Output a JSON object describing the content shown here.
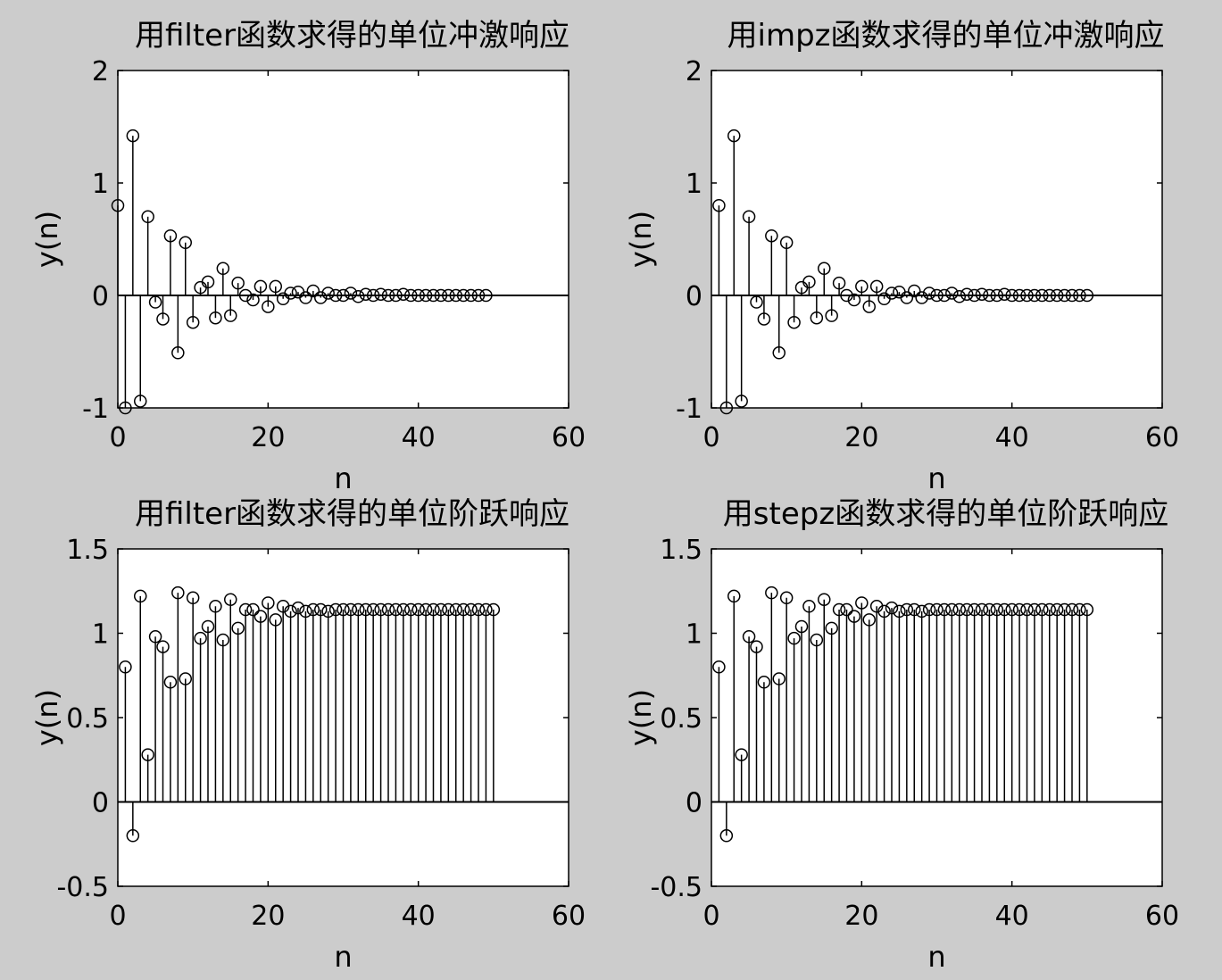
{
  "chart_data": [
    {
      "type": "stem",
      "title": "用filter函数求得的单位冲激响应",
      "xlabel": "n",
      "ylabel": "y(n)",
      "xlim": [
        0,
        60
      ],
      "ylim": [
        -1,
        2
      ],
      "xticks": [
        "0",
        "20",
        "40",
        "60"
      ],
      "yticks": [
        "-1",
        "0",
        "1",
        "2"
      ],
      "x": [
        0,
        1,
        2,
        3,
        4,
        5,
        6,
        7,
        8,
        9,
        10,
        11,
        12,
        13,
        14,
        15,
        16,
        17,
        18,
        19,
        20,
        21,
        22,
        23,
        24,
        25,
        26,
        27,
        28,
        29,
        30,
        31,
        32,
        33,
        34,
        35,
        36,
        37,
        38,
        39,
        40,
        41,
        42,
        43,
        44,
        45,
        46,
        47,
        48,
        49
      ],
      "values": [
        0.8,
        -1.0,
        1.42,
        -0.94,
        0.7,
        -0.06,
        -0.21,
        0.53,
        -0.51,
        0.47,
        -0.24,
        0.07,
        0.12,
        -0.2,
        0.24,
        -0.18,
        0.11,
        0.0,
        -0.04,
        0.08,
        -0.1,
        0.08,
        -0.03,
        0.02,
        0.03,
        -0.02,
        0.04,
        -0.02,
        0.02,
        0.0,
        0.0,
        0.02,
        -0.01,
        0.01,
        0.0,
        0.01,
        0.0,
        0.0,
        0.01,
        0.0,
        0.0,
        0.0,
        0.0,
        0.0,
        0.0,
        0.0,
        0.0,
        0.0,
        0.0,
        0.0
      ],
      "grid": false
    },
    {
      "type": "stem",
      "title": "用impz函数求得的单位冲激响应",
      "xlabel": "n",
      "ylabel": "y(n)",
      "xlim": [
        0,
        60
      ],
      "ylim": [
        -1,
        2
      ],
      "xticks": [
        "0",
        "20",
        "40",
        "60"
      ],
      "yticks": [
        "-1",
        "0",
        "1",
        "2"
      ],
      "x": [
        1,
        2,
        3,
        4,
        5,
        6,
        7,
        8,
        9,
        10,
        11,
        12,
        13,
        14,
        15,
        16,
        17,
        18,
        19,
        20,
        21,
        22,
        23,
        24,
        25,
        26,
        27,
        28,
        29,
        30,
        31,
        32,
        33,
        34,
        35,
        36,
        37,
        38,
        39,
        40,
        41,
        42,
        43,
        44,
        45,
        46,
        47,
        48,
        49,
        50
      ],
      "values": [
        0.8,
        -1.0,
        1.42,
        -0.94,
        0.7,
        -0.06,
        -0.21,
        0.53,
        -0.51,
        0.47,
        -0.24,
        0.07,
        0.12,
        -0.2,
        0.24,
        -0.18,
        0.11,
        0.0,
        -0.04,
        0.08,
        -0.1,
        0.08,
        -0.03,
        0.02,
        0.03,
        -0.02,
        0.04,
        -0.02,
        0.02,
        0.0,
        0.0,
        0.02,
        -0.01,
        0.01,
        0.0,
        0.01,
        0.0,
        0.0,
        0.01,
        0.0,
        0.0,
        0.0,
        0.0,
        0.0,
        0.0,
        0.0,
        0.0,
        0.0,
        0.0,
        0.0
      ],
      "grid": false
    },
    {
      "type": "stem",
      "title": "用filter函数求得的单位阶跃响应",
      "xlabel": "n",
      "ylabel": "y(n)",
      "xlim": [
        0,
        60
      ],
      "ylim": [
        -0.5,
        1.5
      ],
      "xticks": [
        "0",
        "20",
        "40",
        "60"
      ],
      "yticks": [
        "-0.5",
        "0",
        "0.5",
        "1",
        "1.5"
      ],
      "x": [
        1,
        2,
        3,
        4,
        5,
        6,
        7,
        8,
        9,
        10,
        11,
        12,
        13,
        14,
        15,
        16,
        17,
        18,
        19,
        20,
        21,
        22,
        23,
        24,
        25,
        26,
        27,
        28,
        29,
        30,
        31,
        32,
        33,
        34,
        35,
        36,
        37,
        38,
        39,
        40,
        41,
        42,
        43,
        44,
        45,
        46,
        47,
        48,
        49,
        50
      ],
      "values": [
        0.8,
        -0.2,
        1.22,
        0.28,
        0.98,
        0.92,
        0.71,
        1.24,
        0.73,
        1.21,
        0.97,
        1.04,
        1.16,
        0.96,
        1.2,
        1.03,
        1.14,
        1.14,
        1.1,
        1.18,
        1.08,
        1.16,
        1.13,
        1.15,
        1.13,
        1.14,
        1.14,
        1.13,
        1.14,
        1.14,
        1.14,
        1.14,
        1.14,
        1.14,
        1.14,
        1.14,
        1.14,
        1.14,
        1.14,
        1.14,
        1.14,
        1.14,
        1.14,
        1.14,
        1.14,
        1.14,
        1.14,
        1.14,
        1.14,
        1.14
      ],
      "grid": false
    },
    {
      "type": "stem",
      "title": "用stepz函数求得的单位阶跃响应",
      "xlabel": "n",
      "ylabel": "y(n)",
      "xlim": [
        0,
        60
      ],
      "ylim": [
        -0.5,
        1.5
      ],
      "xticks": [
        "0",
        "20",
        "40",
        "60"
      ],
      "yticks": [
        "-0.5",
        "0",
        "0.5",
        "1",
        "1.5"
      ],
      "x": [
        1,
        2,
        3,
        4,
        5,
        6,
        7,
        8,
        9,
        10,
        11,
        12,
        13,
        14,
        15,
        16,
        17,
        18,
        19,
        20,
        21,
        22,
        23,
        24,
        25,
        26,
        27,
        28,
        29,
        30,
        31,
        32,
        33,
        34,
        35,
        36,
        37,
        38,
        39,
        40,
        41,
        42,
        43,
        44,
        45,
        46,
        47,
        48,
        49,
        50
      ],
      "values": [
        0.8,
        -0.2,
        1.22,
        0.28,
        0.98,
        0.92,
        0.71,
        1.24,
        0.73,
        1.21,
        0.97,
        1.04,
        1.16,
        0.96,
        1.2,
        1.03,
        1.14,
        1.14,
        1.1,
        1.18,
        1.08,
        1.16,
        1.13,
        1.15,
        1.13,
        1.14,
        1.14,
        1.13,
        1.14,
        1.14,
        1.14,
        1.14,
        1.14,
        1.14,
        1.14,
        1.14,
        1.14,
        1.14,
        1.14,
        1.14,
        1.14,
        1.14,
        1.14,
        1.14,
        1.14,
        1.14,
        1.14,
        1.14,
        1.14,
        1.14
      ],
      "grid": false
    }
  ]
}
